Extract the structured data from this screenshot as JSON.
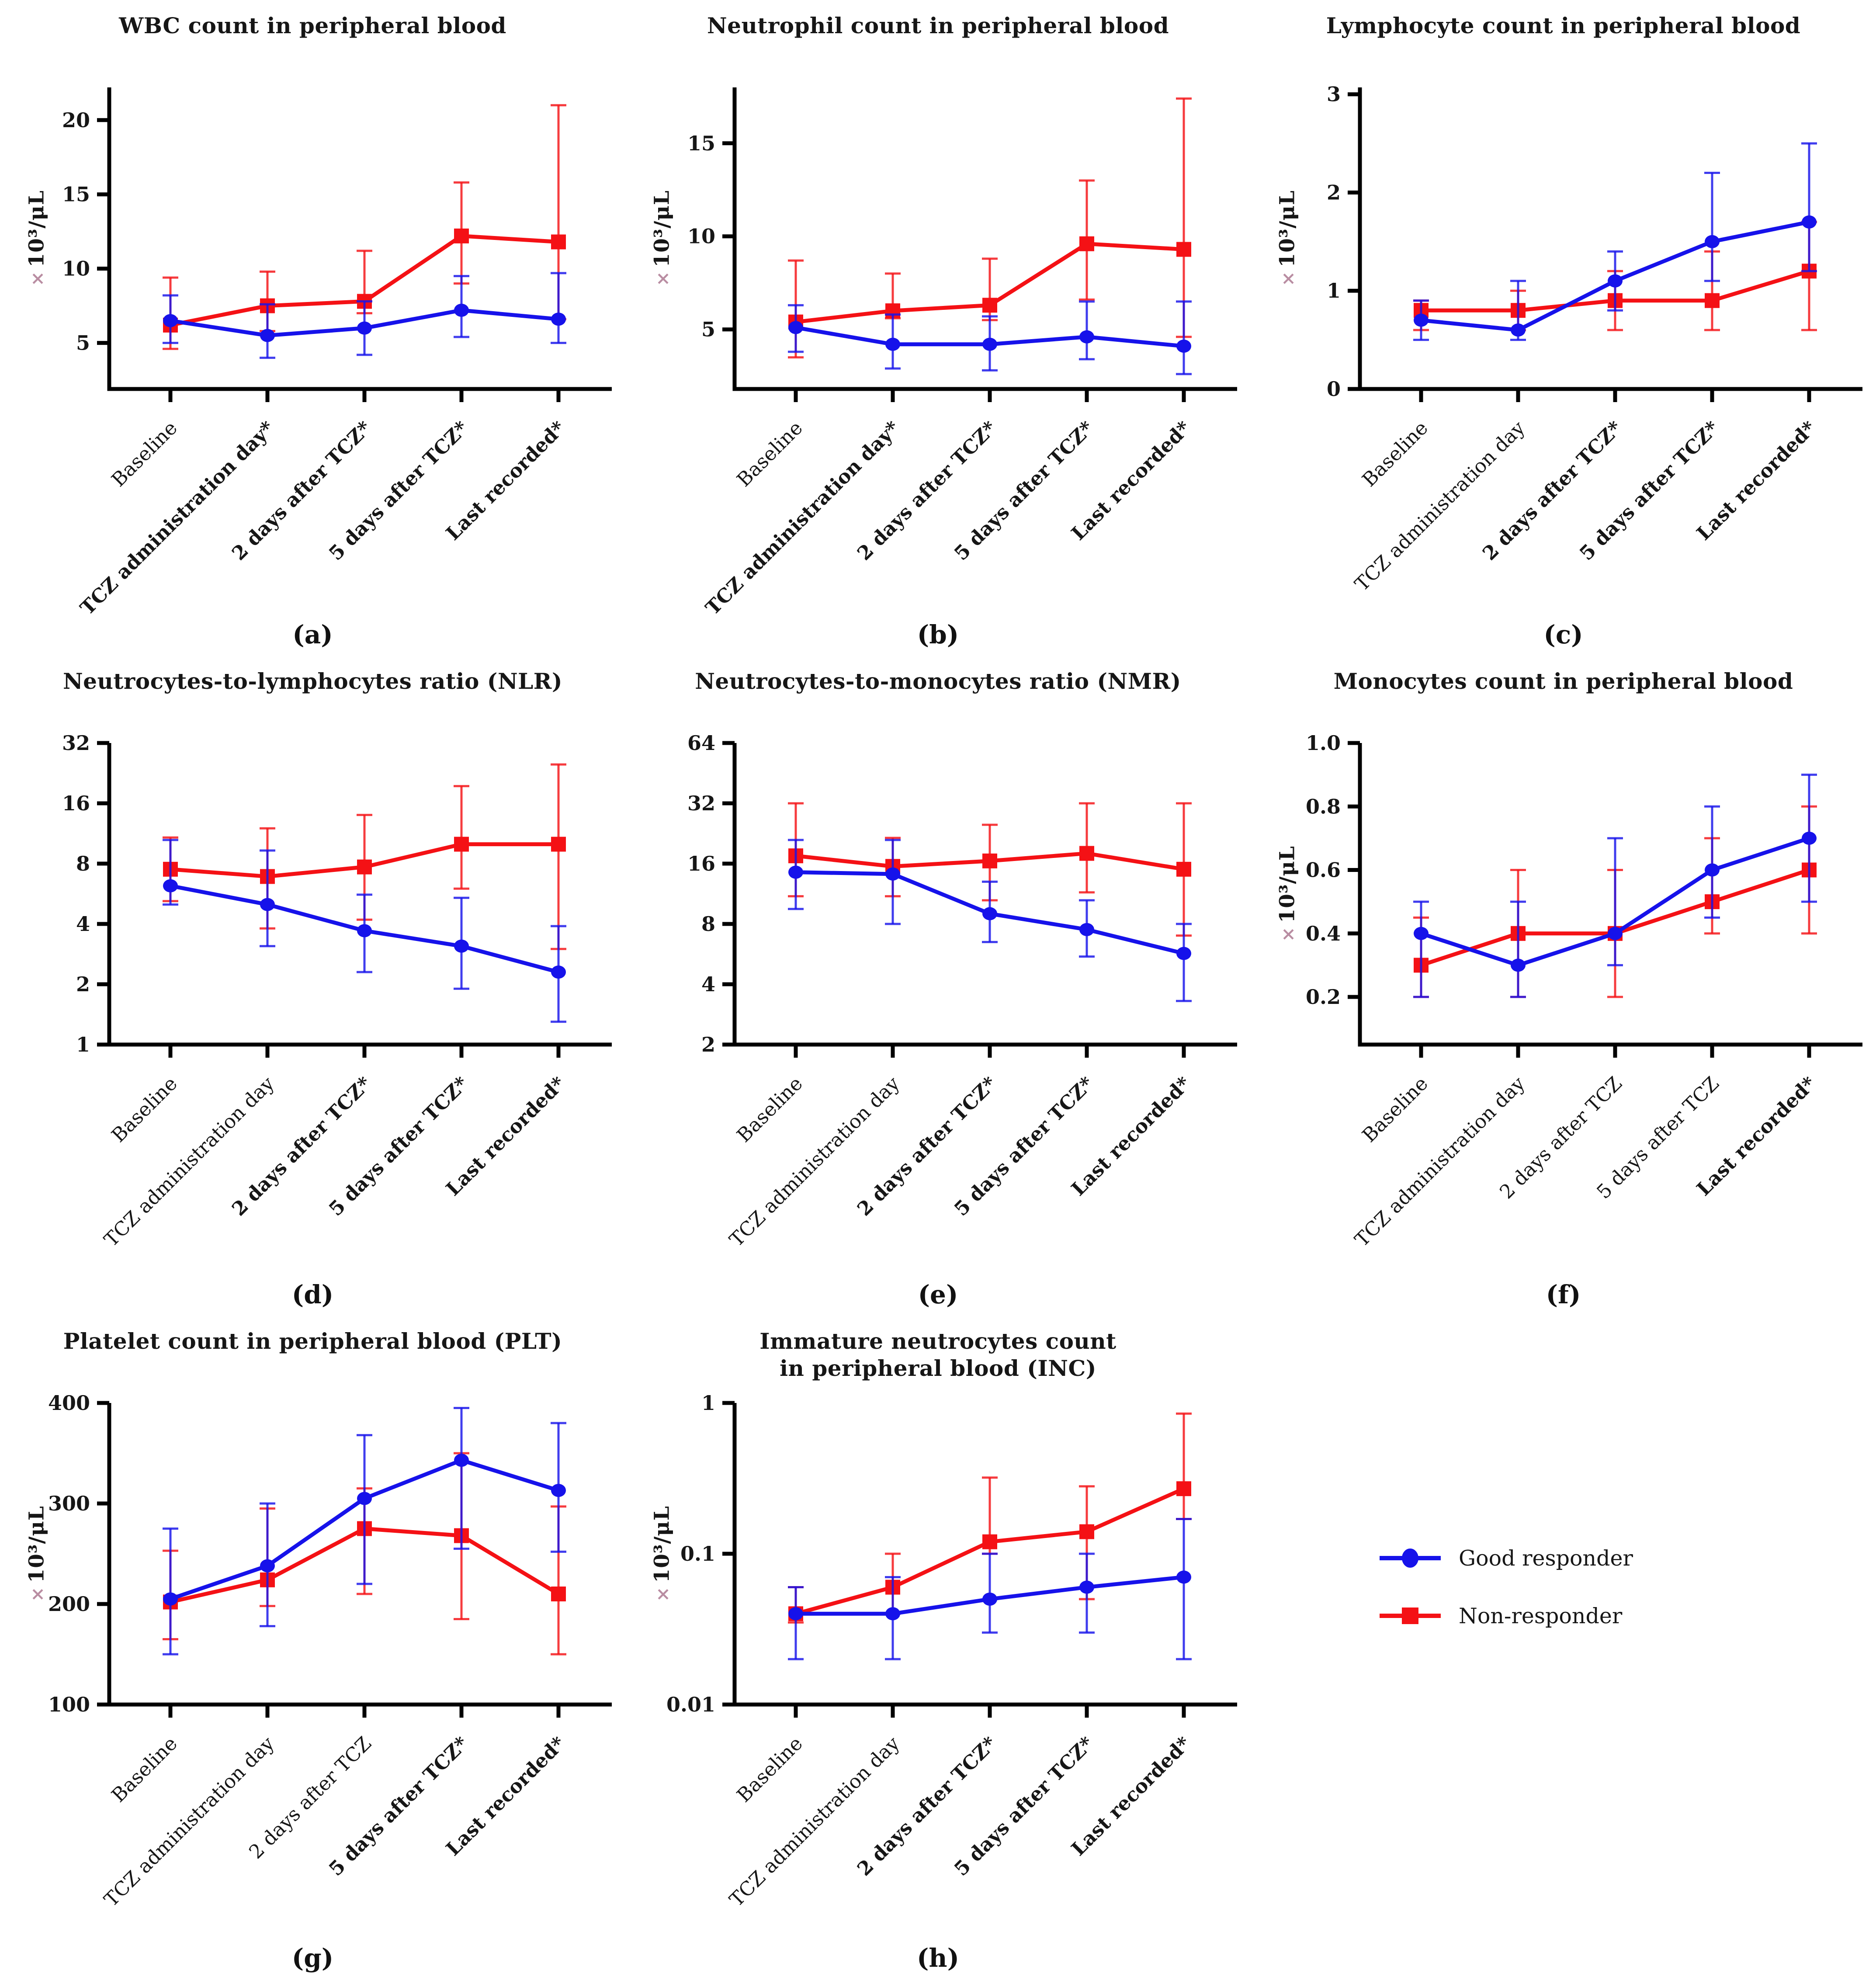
{
  "ui": {
    "times_symbol": "×",
    "background": "#ffffff",
    "axis_color": "#000000",
    "text_color": "#161616",
    "times_color": "#b98da2"
  },
  "legend": {
    "items": [
      {
        "label": "Good responder",
        "marker": "circle",
        "color": "#1612ea"
      },
      {
        "label": "Non-responder",
        "marker": "square",
        "color": "#f41115"
      }
    ]
  },
  "chart_data": [
    {
      "id": "a",
      "panel_label": "(a)",
      "type": "line",
      "title": "WBC count in peripheral blood",
      "ylabel": "10³/μL",
      "yscale": "linear",
      "ylim": [
        1.9,
        22.2
      ],
      "ytick_values": [
        5,
        10,
        15,
        20
      ],
      "ytick_labels": [
        "5",
        "10",
        "15",
        "20"
      ],
      "categories": [
        {
          "label": "Baseline",
          "bold": false
        },
        {
          "label": "TCZ administration day*",
          "bold": true
        },
        {
          "label": "2 days after TCZ*",
          "bold": true
        },
        {
          "label": "5 days after TCZ*",
          "bold": true
        },
        {
          "label": "Last recorded*",
          "bold": true
        }
      ],
      "series": [
        {
          "name": "Good responder",
          "marker": "circle",
          "color": "#1612ea",
          "values": [
            6.5,
            5.5,
            6.0,
            7.2,
            6.6
          ],
          "err_low": [
            5.0,
            4.0,
            4.2,
            5.4,
            5.0
          ],
          "err_high": [
            8.2,
            7.6,
            7.8,
            9.5,
            9.7
          ]
        },
        {
          "name": "Non-responder",
          "marker": "square",
          "color": "#f41115",
          "values": [
            6.2,
            7.5,
            7.8,
            12.2,
            11.8
          ],
          "err_low": [
            4.6,
            5.8,
            7.0,
            9.0,
            6.6
          ],
          "err_high": [
            9.4,
            9.8,
            11.2,
            15.8,
            21.0
          ]
        }
      ]
    },
    {
      "id": "b",
      "panel_label": "(b)",
      "type": "line",
      "title": "Neutrophil count in peripheral blood",
      "ylabel": "10³/μL",
      "yscale": "linear",
      "ylim": [
        1.8,
        18.0
      ],
      "ytick_values": [
        5,
        10,
        15
      ],
      "ytick_labels": [
        "5",
        "10",
        "15"
      ],
      "categories": [
        {
          "label": "Baseline",
          "bold": false
        },
        {
          "label": "TCZ administration day*",
          "bold": true
        },
        {
          "label": "2 days after TCZ*",
          "bold": true
        },
        {
          "label": "5 days after TCZ*",
          "bold": true
        },
        {
          "label": "Last recorded*",
          "bold": true
        }
      ],
      "series": [
        {
          "name": "Good responder",
          "marker": "circle",
          "color": "#1612ea",
          "values": [
            5.1,
            4.2,
            4.2,
            4.6,
            4.1
          ],
          "err_low": [
            3.8,
            2.9,
            2.8,
            3.4,
            2.6
          ],
          "err_high": [
            6.3,
            5.8,
            5.7,
            6.5,
            6.5
          ]
        },
        {
          "name": "Non-responder",
          "marker": "square",
          "color": "#f41115",
          "values": [
            5.4,
            6.0,
            6.3,
            9.6,
            9.3
          ],
          "err_low": [
            3.5,
            5.6,
            5.5,
            6.6,
            4.6
          ],
          "err_high": [
            8.7,
            8.0,
            8.8,
            13.0,
            17.4
          ]
        }
      ]
    },
    {
      "id": "c",
      "panel_label": "(c)",
      "type": "line",
      "title": "Lymphocyte count in peripheral blood",
      "ylabel": "10³/μL",
      "yscale": "linear",
      "ylim": [
        0,
        3.07
      ],
      "ytick_values": [
        0,
        1,
        2,
        3
      ],
      "ytick_labels": [
        "0",
        "1",
        "2",
        "3"
      ],
      "categories": [
        {
          "label": "Baseline",
          "bold": false
        },
        {
          "label": "TCZ administration day",
          "bold": false
        },
        {
          "label": "2 days after TCZ*",
          "bold": true
        },
        {
          "label": "5 days after TCZ*",
          "bold": true
        },
        {
          "label": "Last recorded*",
          "bold": true
        }
      ],
      "series": [
        {
          "name": "Good responder",
          "marker": "circle",
          "color": "#1612ea",
          "values": [
            0.7,
            0.6,
            1.1,
            1.5,
            1.7
          ],
          "err_low": [
            0.5,
            0.5,
            0.8,
            1.1,
            1.2
          ],
          "err_high": [
            0.9,
            1.1,
            1.4,
            2.2,
            2.5
          ]
        },
        {
          "name": "Non-responder",
          "marker": "square",
          "color": "#f41115",
          "values": [
            0.8,
            0.8,
            0.9,
            0.9,
            1.2
          ],
          "err_low": [
            0.6,
            0.6,
            0.6,
            0.6,
            0.6
          ],
          "err_high": [
            0.9,
            1.0,
            1.2,
            1.4,
            1.7
          ]
        }
      ]
    },
    {
      "id": "d",
      "panel_label": "(d)",
      "type": "line",
      "title": "Neutrocytes-to-lymphocytes ratio (NLR)",
      "ylabel": "",
      "yscale": "log2",
      "ylim": [
        1,
        32
      ],
      "ytick_values": [
        1,
        2,
        4,
        8,
        16,
        32
      ],
      "ytick_labels": [
        "1",
        "2",
        "4",
        "8",
        "16",
        "32"
      ],
      "categories": [
        {
          "label": "Baseline",
          "bold": false
        },
        {
          "label": "TCZ administration day",
          "bold": false
        },
        {
          "label": "2 days after TCZ*",
          "bold": true
        },
        {
          "label": "5 days after TCZ*",
          "bold": true
        },
        {
          "label": "Last recorded*",
          "bold": true
        }
      ],
      "series": [
        {
          "name": "Good responder",
          "marker": "circle",
          "color": "#1612ea",
          "values": [
            6.2,
            5.0,
            3.7,
            3.1,
            2.3
          ],
          "err_low": [
            5.0,
            3.1,
            2.3,
            1.9,
            1.3
          ],
          "err_high": [
            10.5,
            9.3,
            5.6,
            5.4,
            3.9
          ]
        },
        {
          "name": "Non-responder",
          "marker": "square",
          "color": "#f41115",
          "values": [
            7.5,
            6.9,
            7.7,
            10.0,
            10.0
          ],
          "err_low": [
            5.2,
            3.8,
            4.2,
            6.0,
            3.0
          ],
          "err_high": [
            10.8,
            12.0,
            14.0,
            19.5,
            25.0
          ]
        }
      ]
    },
    {
      "id": "e",
      "panel_label": "(e)",
      "type": "line",
      "title": "Neutrocytes-to-monocytes ratio (NMR)",
      "ylabel": "",
      "yscale": "log2",
      "ylim": [
        2,
        64
      ],
      "ytick_values": [
        2,
        4,
        8,
        16,
        32,
        64
      ],
      "ytick_labels": [
        "2",
        "4",
        "8",
        "16",
        "32",
        "64"
      ],
      "categories": [
        {
          "label": "Baseline",
          "bold": false
        },
        {
          "label": "TCZ administration day",
          "bold": false
        },
        {
          "label": "2 days after TCZ*",
          "bold": true
        },
        {
          "label": "5 days after TCZ*",
          "bold": true
        },
        {
          "label": "Last recorded*",
          "bold": true
        }
      ],
      "series": [
        {
          "name": "Good responder",
          "marker": "circle",
          "color": "#1612ea",
          "values": [
            14.5,
            14.2,
            9.0,
            7.5,
            5.7
          ],
          "err_low": [
            9.5,
            8.0,
            6.5,
            5.5,
            3.3
          ],
          "err_high": [
            21.0,
            21.0,
            13.0,
            10.5,
            8.0
          ]
        },
        {
          "name": "Non-responder",
          "marker": "square",
          "color": "#f41115",
          "values": [
            17.5,
            15.5,
            16.5,
            18.0,
            15.0
          ],
          "err_low": [
            11.0,
            11.0,
            10.5,
            11.5,
            7.0
          ],
          "err_high": [
            32.0,
            21.5,
            25.0,
            32.0,
            32.0
          ]
        }
      ]
    },
    {
      "id": "f",
      "panel_label": "(f)",
      "type": "line",
      "title": "Monocytes count in peripheral blood",
      "ylabel": "10³/μL",
      "yscale": "linear",
      "ylim": [
        0.05,
        1.0
      ],
      "ytick_values": [
        0.2,
        0.4,
        0.6,
        0.8,
        1.0
      ],
      "ytick_labels": [
        "0.2",
        "0.4",
        "0.6",
        "0.8",
        "1.0"
      ],
      "categories": [
        {
          "label": "Baseline",
          "bold": false
        },
        {
          "label": "TCZ administration day",
          "bold": false
        },
        {
          "label": "2 days after TCZ",
          "bold": false
        },
        {
          "label": "5 days after TCZ",
          "bold": false
        },
        {
          "label": "Last recorded*",
          "bold": true
        }
      ],
      "series": [
        {
          "name": "Good responder",
          "marker": "circle",
          "color": "#1612ea",
          "values": [
            0.4,
            0.3,
            0.4,
            0.6,
            0.7
          ],
          "err_low": [
            0.2,
            0.2,
            0.3,
            0.45,
            0.5
          ],
          "err_high": [
            0.5,
            0.5,
            0.7,
            0.8,
            0.9
          ]
        },
        {
          "name": "Non-responder",
          "marker": "square",
          "color": "#f41115",
          "values": [
            0.3,
            0.4,
            0.4,
            0.5,
            0.6
          ],
          "err_low": [
            0.2,
            0.2,
            0.2,
            0.4,
            0.4
          ],
          "err_high": [
            0.45,
            0.6,
            0.6,
            0.7,
            0.8
          ]
        }
      ]
    },
    {
      "id": "g",
      "panel_label": "(g)",
      "type": "line",
      "title": "Platelet count in peripheral blood (PLT)",
      "ylabel": "10³/μL",
      "yscale": "linear",
      "ylim": [
        100,
        400
      ],
      "ytick_values": [
        100,
        200,
        300,
        400
      ],
      "ytick_labels": [
        "100",
        "200",
        "300",
        "400"
      ],
      "categories": [
        {
          "label": "Baseline",
          "bold": false
        },
        {
          "label": "TCZ administration day",
          "bold": false
        },
        {
          "label": "2 days after TCZ",
          "bold": false
        },
        {
          "label": "5 days after TCZ*",
          "bold": true
        },
        {
          "label": "Last recorded*",
          "bold": true
        }
      ],
      "series": [
        {
          "name": "Good responder",
          "marker": "circle",
          "color": "#1612ea",
          "values": [
            205,
            238,
            305,
            343,
            313
          ],
          "err_low": [
            150,
            178,
            220,
            255,
            252
          ],
          "err_high": [
            275,
            300,
            368,
            395,
            380
          ]
        },
        {
          "name": "Non-responder",
          "marker": "square",
          "color": "#f41115",
          "values": [
            202,
            224,
            275,
            268,
            210
          ],
          "err_low": [
            165,
            198,
            210,
            185,
            150
          ],
          "err_high": [
            253,
            295,
            315,
            350,
            297
          ]
        }
      ]
    },
    {
      "id": "h",
      "panel_label": "(h)",
      "type": "line",
      "title": "Immature neutrocytes count\nin peripheral blood (INC)",
      "ylabel": "10³/μL",
      "yscale": "log10",
      "ylim": [
        0.01,
        1
      ],
      "ytick_values": [
        0.01,
        0.1,
        1
      ],
      "ytick_labels": [
        "0.01",
        "0.1",
        "1"
      ],
      "categories": [
        {
          "label": "Baseline",
          "bold": false
        },
        {
          "label": "TCZ administration day",
          "bold": false
        },
        {
          "label": "2 days after TCZ*",
          "bold": true
        },
        {
          "label": "5 days after TCZ*",
          "bold": true
        },
        {
          "label": "Last recorded*",
          "bold": true
        }
      ],
      "series": [
        {
          "name": "Good responder",
          "marker": "circle",
          "color": "#1612ea",
          "values": [
            0.04,
            0.04,
            0.05,
            0.06,
            0.07
          ],
          "err_low": [
            0.02,
            0.02,
            0.03,
            0.03,
            0.02
          ],
          "err_high": [
            0.06,
            0.07,
            0.1,
            0.1,
            0.17
          ]
        },
        {
          "name": "Non-responder",
          "marker": "square",
          "color": "#f41115",
          "values": [
            0.04,
            0.06,
            0.12,
            0.14,
            0.27
          ],
          "err_low": [
            0.035,
            0.04,
            0.1,
            0.05,
            0.17
          ],
          "err_high": [
            0.06,
            0.1,
            0.32,
            0.28,
            0.85
          ]
        }
      ]
    }
  ]
}
